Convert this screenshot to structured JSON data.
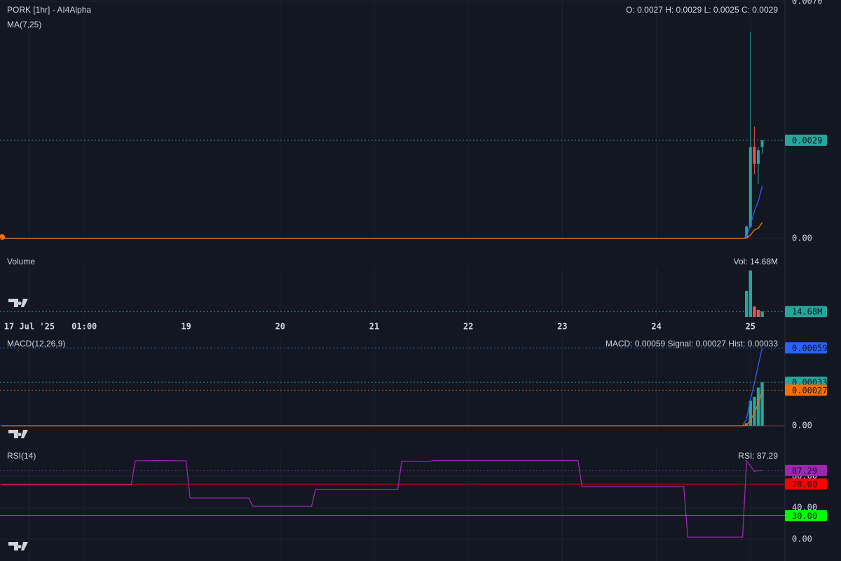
{
  "chart_data": [
    {
      "type": "candlestick",
      "title": "PORK [1hr] - AI4Alpha",
      "subtitle": "MA(7,25)",
      "legend_text": "O: 0.0027 H: 0.0029 L: 0.0025 C: 0.0029",
      "ylim": [
        0,
        0.007
      ],
      "yticks": [
        {
          "value": 0,
          "label": "0.00"
        },
        {
          "value": 0.007,
          "label": "0.0070"
        }
      ],
      "up_color": "#26a69a",
      "down_color": "#ef5350",
      "candles": {
        "x": [
          191,
          192,
          193,
          194,
          195
        ],
        "open": [
          2e-05,
          0.00035,
          0.0027,
          0.0022,
          0.0027
        ],
        "high": [
          0.00038,
          0.0061,
          0.0033,
          0.0027,
          0.0029
        ],
        "low": [
          1e-05,
          0.0003,
          0.0019,
          0.0016,
          0.0025
        ],
        "close": [
          0.00035,
          0.0027,
          0.0022,
          0.0026,
          0.0029
        ]
      },
      "lines": [
        {
          "color": "#2962ff",
          "x": [
            1,
            190,
            191,
            192,
            193,
            194,
            195
          ],
          "values": [
            0,
            0,
            5e-05,
            0.0004,
            0.0008,
            0.0011,
            0.00155
          ]
        },
        {
          "color": "#f57c00",
          "x": [
            1,
            190,
            191,
            192,
            193,
            194,
            195
          ],
          "values": [
            0,
            0,
            1e-05,
            0.0001,
            0.00025,
            0.0003,
            0.00047
          ]
        }
      ],
      "markers": [
        {
          "value": 0.0029,
          "color": "#26a69a",
          "line_style": "dotted"
        }
      ]
    },
    {
      "type": "bar",
      "title": "Volume",
      "legend_text": "Vol: 14.68M",
      "xlim": [
        0.5,
        200.8
      ],
      "xticks": [
        {
          "value": 8,
          "label": "17 Jul '25"
        },
        {
          "value": 22,
          "label": "01:00"
        },
        {
          "value": 48,
          "label": "19"
        },
        {
          "value": 72,
          "label": "20"
        },
        {
          "value": 96,
          "label": "21"
        },
        {
          "value": 120,
          "label": "22"
        },
        {
          "value": 144,
          "label": "23"
        },
        {
          "value": 168,
          "label": "24"
        },
        {
          "value": 192,
          "label": "25"
        }
      ],
      "ylim": [
        0,
        130000000
      ],
      "x": [
        191,
        192,
        193,
        194,
        195
      ],
      "values": [
        70000000,
        125000000,
        28000000,
        19000000,
        14680000
      ],
      "colors": [
        "#26a69a",
        "#26a69a",
        "#ef5350",
        "#ef5350",
        "#26a69a"
      ],
      "markers": [
        {
          "value": 14680000,
          "label": "14.68M",
          "color": "#26a69a",
          "line_style": "dotted"
        }
      ]
    },
    {
      "type": "macd",
      "title": "MACD(12,26,9)",
      "legend_text": "MACD: 0.00059 Signal: 0.00027 Hist: 0.00033",
      "ylim": [
        -2e-05,
        0.00066
      ],
      "yticks": [
        {
          "value": 0,
          "label": "0.00"
        }
      ],
      "histogram": {
        "color": "#26a69a",
        "x": [
          191,
          192,
          193,
          194,
          195
        ],
        "values": [
          2e-05,
          0.00019,
          0.00022,
          0.00029,
          0.00033
        ]
      },
      "lines": [
        {
          "color": "#2962ff",
          "x": [
            1,
            190,
            191,
            192,
            193,
            194,
            195
          ],
          "values": [
            0,
            0,
            5e-05,
            0.0002,
            0.00032,
            0.00046,
            0.00059
          ]
        },
        {
          "color": "#ff6d00",
          "x": [
            1,
            190,
            191,
            192,
            193,
            194,
            195
          ],
          "values": [
            0,
            0,
            1e-05,
            4e-05,
            0.0001,
            0.00017,
            0.00027
          ]
        }
      ],
      "markers": [
        {
          "value": 0.00059,
          "color": "#2962ff",
          "line_style": "dotted"
        },
        {
          "value": 0.00033,
          "color": "#26a69a",
          "line_style": "dotted"
        },
        {
          "value": 0.00027,
          "color": "#ff6d00",
          "line_style": "dotted"
        }
      ]
    },
    {
      "type": "line",
      "title": "RSI(14)",
      "legend_text": "RSI: 87.29",
      "ylim": [
        -27.5,
        114.7
      ],
      "yticks": [
        {
          "value": 0,
          "label": "0.00"
        },
        {
          "value": 40,
          "label": "40.00"
        },
        {
          "value": 80,
          "label": "80.00"
        }
      ],
      "lines": [
        {
          "color": "#9c27b0",
          "x": [
            1,
            34,
            35,
            40,
            48,
            49,
            64,
            65,
            80,
            81,
            102,
            103,
            110,
            111,
            148,
            149,
            175,
            176,
            190,
            191,
            192,
            193,
            194,
            195
          ],
          "values": [
            69,
            69,
            99.5,
            100,
            99.5,
            52.4,
            52.4,
            41.8,
            41.8,
            63,
            63,
            98.7,
            98.7,
            100,
            100,
            66.7,
            66.7,
            2.7,
            2.7,
            99.5,
            93,
            86,
            87,
            87.29
          ]
        }
      ],
      "markers": [
        {
          "value": 87.29,
          "color": "#9c27b0",
          "line_style": "dotted"
        },
        {
          "value": 70,
          "label": "70.00",
          "color": "#ff0000",
          "line_style": "solid"
        },
        {
          "value": 30,
          "label": "30.00",
          "color": "#00ff00",
          "line_style": "solid"
        }
      ]
    }
  ]
}
